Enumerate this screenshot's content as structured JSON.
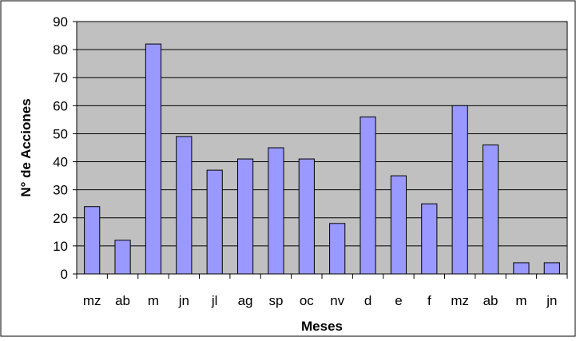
{
  "chart_data": {
    "type": "bar",
    "categories": [
      "mz",
      "ab",
      "m",
      "jn",
      "jl",
      "ag",
      "sp",
      "oc",
      "nv",
      "d",
      "e",
      "f",
      "mz",
      "ab",
      "m",
      "jn"
    ],
    "values": [
      24,
      12,
      82,
      49,
      37,
      41,
      45,
      41,
      18,
      56,
      35,
      25,
      60,
      46,
      4,
      4
    ],
    "title": "",
    "xlabel": "Meses",
    "ylabel": "N° de Acciones",
    "ylim": [
      0,
      90
    ],
    "yticks": [
      "0",
      "10",
      "20",
      "30",
      "40",
      "50",
      "60",
      "70",
      "80",
      "90"
    ],
    "grid": true,
    "legend": "none"
  },
  "colors": {
    "plot_background": "#c0c0c0",
    "bar_fill": "#9999ff",
    "bar_stroke": "#000000",
    "gridline": "#000000",
    "border": "#000000"
  }
}
